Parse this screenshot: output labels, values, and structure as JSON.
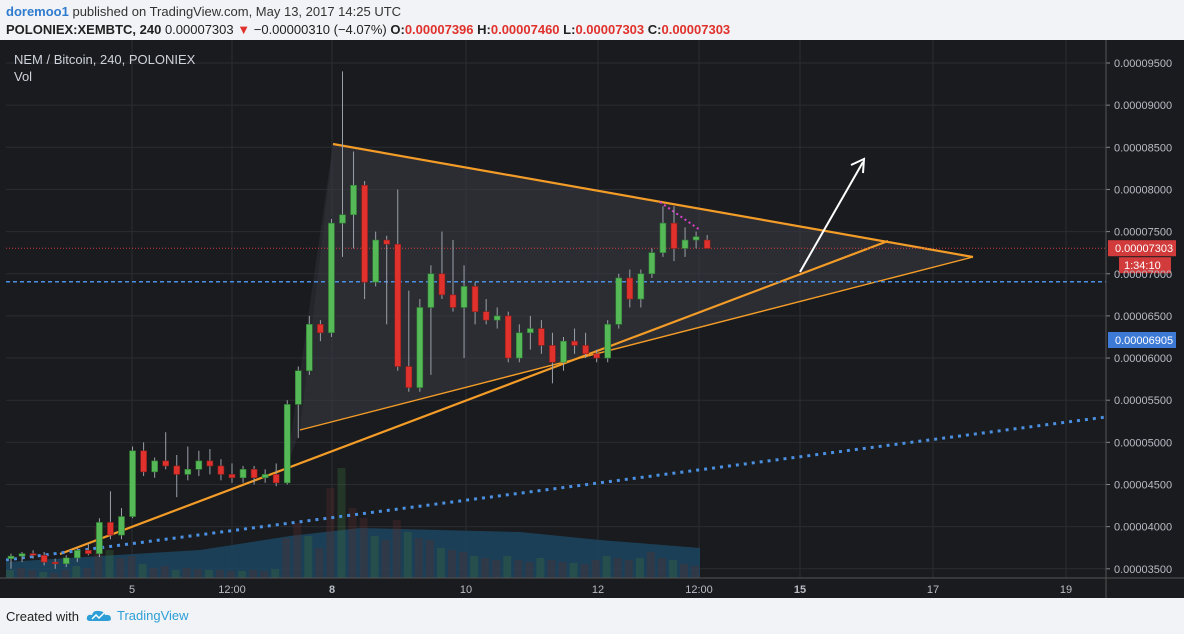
{
  "header": {
    "user": "doremoo1",
    "published_text": "published on TradingView.com, May 13, 2017 14:25 UTC",
    "symbol": "POLONIEX:XEMBTC, 240",
    "last": "0.00007303",
    "change": "−0.00000310 (−4.07%)",
    "o_label": "O:",
    "o_value": "0.00007396",
    "h_label": "H:",
    "h_value": "0.00007460",
    "l_label": "L:",
    "l_value": "0.00007303",
    "c_label": "C:",
    "c_value": "0.00007303"
  },
  "chart_data": {
    "type": "candlestick",
    "title": "NEM / Bitcoin, 240, POLONIEX",
    "subtitle": "Vol",
    "y_range": [
      3.2e-05,
      9.85e-05
    ],
    "y_ticks": [
      "0.00009500",
      "0.00009000",
      "0.00008500",
      "0.00008000",
      "0.00007500",
      "0.00007000",
      "0.00006500",
      "0.00006000",
      "0.00005500",
      "0.00005000",
      "0.00004500",
      "0.00004000",
      "0.00003500"
    ],
    "x_ticks": [
      "5",
      "12:00",
      "8",
      "10",
      "12",
      "12:00",
      "15",
      "17",
      "19"
    ],
    "price_label": "0.00007303",
    "countdown_label": "1:34:10",
    "level_label": "0.00006905",
    "candles": [
      {
        "o": 3.62,
        "h": 3.68,
        "l": 3.5,
        "c": 3.65
      },
      {
        "o": 3.65,
        "h": 3.7,
        "l": 3.58,
        "c": 3.68
      },
      {
        "o": 3.68,
        "h": 3.72,
        "l": 3.62,
        "c": 3.66
      },
      {
        "o": 3.66,
        "h": 3.7,
        "l": 3.54,
        "c": 3.58
      },
      {
        "o": 3.58,
        "h": 3.62,
        "l": 3.5,
        "c": 3.56
      },
      {
        "o": 3.56,
        "h": 3.66,
        "l": 3.52,
        "c": 3.63
      },
      {
        "o": 3.63,
        "h": 3.75,
        "l": 3.58,
        "c": 3.72
      },
      {
        "o": 3.72,
        "h": 3.8,
        "l": 3.66,
        "c": 3.68
      },
      {
        "o": 3.68,
        "h": 4.1,
        "l": 3.64,
        "c": 4.05
      },
      {
        "o": 4.05,
        "h": 4.42,
        "l": 3.85,
        "c": 3.9
      },
      {
        "o": 3.9,
        "h": 4.22,
        "l": 3.85,
        "c": 4.12
      },
      {
        "o": 4.12,
        "h": 4.95,
        "l": 4.1,
        "c": 4.9
      },
      {
        "o": 4.9,
        "h": 5.0,
        "l": 4.6,
        "c": 4.65
      },
      {
        "o": 4.65,
        "h": 4.82,
        "l": 4.58,
        "c": 4.78
      },
      {
        "o": 4.78,
        "h": 5.12,
        "l": 4.68,
        "c": 4.72
      },
      {
        "o": 4.72,
        "h": 4.85,
        "l": 4.35,
        "c": 4.62
      },
      {
        "o": 4.62,
        "h": 4.95,
        "l": 4.55,
        "c": 4.68
      },
      {
        "o": 4.68,
        "h": 4.9,
        "l": 4.6,
        "c": 4.78
      },
      {
        "o": 4.78,
        "h": 4.92,
        "l": 4.62,
        "c": 4.72
      },
      {
        "o": 4.72,
        "h": 4.8,
        "l": 4.55,
        "c": 4.62
      },
      {
        "o": 4.62,
        "h": 4.75,
        "l": 4.52,
        "c": 4.58
      },
      {
        "o": 4.58,
        "h": 4.72,
        "l": 4.52,
        "c": 4.68
      },
      {
        "o": 4.68,
        "h": 4.72,
        "l": 4.5,
        "c": 4.58
      },
      {
        "o": 4.58,
        "h": 4.68,
        "l": 4.52,
        "c": 4.62
      },
      {
        "o": 4.62,
        "h": 4.75,
        "l": 4.48,
        "c": 4.52
      },
      {
        "o": 4.52,
        "h": 5.5,
        "l": 4.5,
        "c": 5.45
      },
      {
        "o": 5.45,
        "h": 5.9,
        "l": 5.05,
        "c": 5.85
      },
      {
        "o": 5.85,
        "h": 6.5,
        "l": 5.8,
        "c": 6.4
      },
      {
        "o": 6.4,
        "h": 6.45,
        "l": 6.2,
        "c": 6.3
      },
      {
        "o": 6.3,
        "h": 7.65,
        "l": 6.25,
        "c": 7.6
      },
      {
        "o": 7.6,
        "h": 9.4,
        "l": 7.2,
        "c": 7.7
      },
      {
        "o": 7.7,
        "h": 8.45,
        "l": 7.3,
        "c": 8.05
      },
      {
        "o": 8.05,
        "h": 8.1,
        "l": 6.7,
        "c": 6.9
      },
      {
        "o": 6.9,
        "h": 7.5,
        "l": 6.85,
        "c": 7.4
      },
      {
        "o": 7.4,
        "h": 7.45,
        "l": 6.4,
        "c": 7.35
      },
      {
        "o": 7.35,
        "h": 8.0,
        "l": 5.85,
        "c": 5.9
      },
      {
        "o": 5.9,
        "h": 6.8,
        "l": 5.6,
        "c": 5.65
      },
      {
        "o": 5.65,
        "h": 6.7,
        "l": 5.6,
        "c": 6.6
      },
      {
        "o": 6.6,
        "h": 7.1,
        "l": 5.8,
        "c": 7.0
      },
      {
        "o": 7.0,
        "h": 7.5,
        "l": 6.7,
        "c": 6.75
      },
      {
        "o": 6.75,
        "h": 7.4,
        "l": 6.55,
        "c": 6.6
      },
      {
        "o": 6.6,
        "h": 7.1,
        "l": 6.0,
        "c": 6.85
      },
      {
        "o": 6.85,
        "h": 6.9,
        "l": 6.4,
        "c": 6.55
      },
      {
        "o": 6.55,
        "h": 6.7,
        "l": 6.4,
        "c": 6.45
      },
      {
        "o": 6.45,
        "h": 6.6,
        "l": 6.35,
        "c": 6.5
      },
      {
        "o": 6.5,
        "h": 6.55,
        "l": 5.95,
        "c": 6.0
      },
      {
        "o": 6.0,
        "h": 6.4,
        "l": 5.95,
        "c": 6.3
      },
      {
        "o": 6.3,
        "h": 6.5,
        "l": 6.1,
        "c": 6.35
      },
      {
        "o": 6.35,
        "h": 6.45,
        "l": 6.05,
        "c": 6.15
      },
      {
        "o": 6.15,
        "h": 6.3,
        "l": 5.7,
        "c": 5.95
      },
      {
        "o": 5.95,
        "h": 6.25,
        "l": 5.85,
        "c": 6.2
      },
      {
        "o": 6.2,
        "h": 6.35,
        "l": 6.05,
        "c": 6.15
      },
      {
        "o": 6.15,
        "h": 6.3,
        "l": 6.0,
        "c": 6.05
      },
      {
        "o": 6.05,
        "h": 6.1,
        "l": 5.95,
        "c": 6.0
      },
      {
        "o": 6.0,
        "h": 6.45,
        "l": 5.95,
        "c": 6.4
      },
      {
        "o": 6.4,
        "h": 7.0,
        "l": 6.35,
        "c": 6.95
      },
      {
        "o": 6.95,
        "h": 7.05,
        "l": 6.6,
        "c": 6.7
      },
      {
        "o": 6.7,
        "h": 7.05,
        "l": 6.6,
        "c": 7.0
      },
      {
        "o": 7.0,
        "h": 7.3,
        "l": 6.95,
        "c": 7.25
      },
      {
        "o": 7.25,
        "h": 7.8,
        "l": 7.2,
        "c": 7.6
      },
      {
        "o": 7.6,
        "h": 7.8,
        "l": 7.15,
        "c": 7.3
      },
      {
        "o": 7.3,
        "h": 7.55,
        "l": 7.2,
        "c": 7.4
      },
      {
        "o": 7.4,
        "h": 7.5,
        "l": 7.3,
        "c": 7.44
      },
      {
        "o": 7.4,
        "h": 7.46,
        "l": 7.3,
        "c": 7.3
      }
    ]
  }
}
